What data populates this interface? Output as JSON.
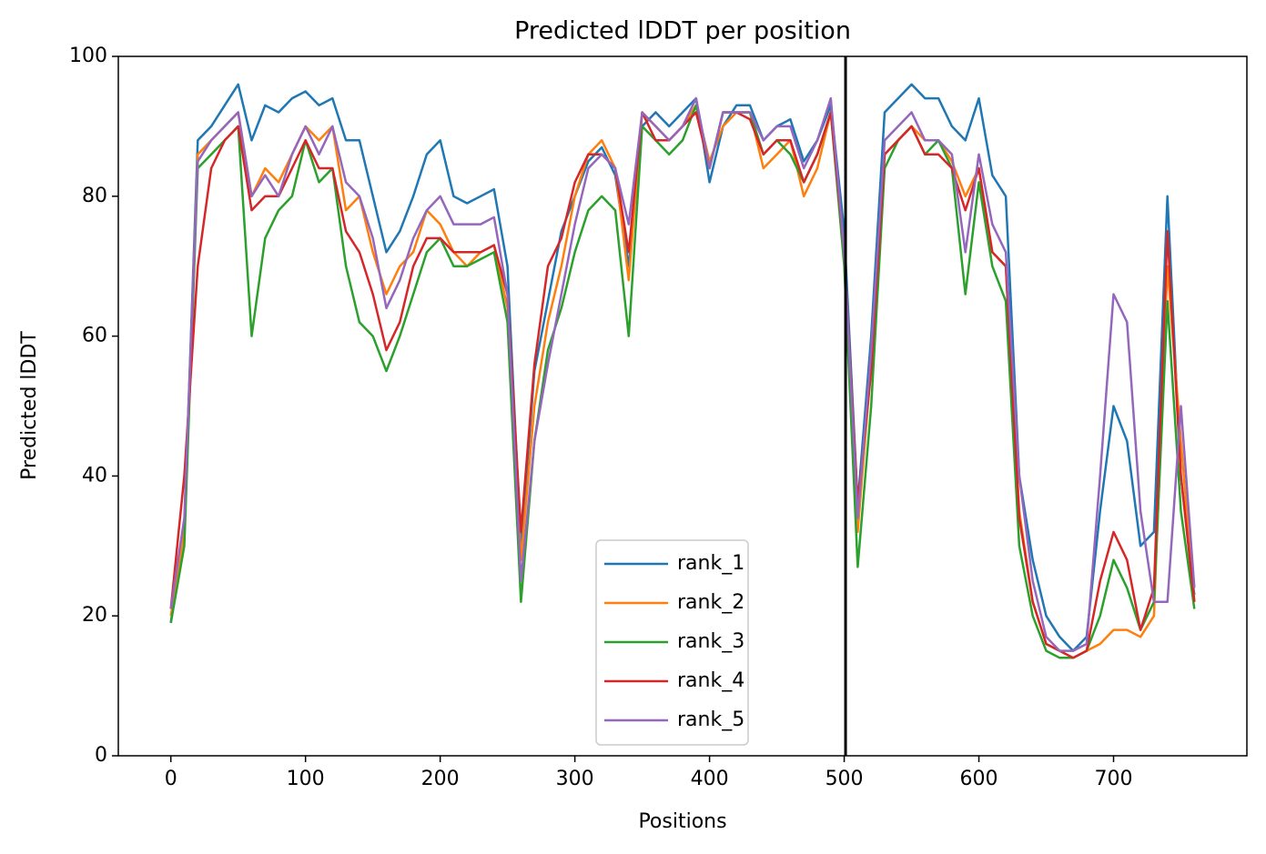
{
  "chart_data": {
    "type": "line",
    "title": "Predicted lDDT per position",
    "xlabel": "Positions",
    "ylabel": "Predicted lDDT",
    "x": [
      0,
      10,
      20,
      30,
      40,
      50,
      60,
      70,
      80,
      90,
      100,
      110,
      120,
      130,
      140,
      150,
      160,
      170,
      180,
      190,
      200,
      210,
      220,
      230,
      240,
      250,
      260,
      270,
      280,
      290,
      300,
      310,
      320,
      330,
      340,
      350,
      360,
      370,
      380,
      390,
      400,
      410,
      420,
      430,
      440,
      450,
      460,
      470,
      480,
      490,
      500,
      510,
      520,
      530,
      540,
      550,
      560,
      570,
      580,
      590,
      600,
      610,
      620,
      630,
      640,
      650,
      660,
      670,
      680,
      690,
      700,
      710,
      720,
      730,
      740,
      750,
      760
    ],
    "series": [
      {
        "name": "rank_1",
        "color": "#1f77b4",
        "values": [
          19,
          33,
          88,
          90,
          93,
          96,
          88,
          93,
          92,
          94,
          95,
          93,
          94,
          88,
          88,
          80,
          72,
          75,
          80,
          86,
          88,
          80,
          79,
          80,
          81,
          70,
          30,
          55,
          65,
          75,
          80,
          85,
          87,
          83,
          70,
          90,
          92,
          90,
          92,
          94,
          82,
          90,
          93,
          93,
          88,
          90,
          91,
          85,
          88,
          93,
          75,
          36,
          60,
          92,
          94,
          96,
          94,
          94,
          90,
          88,
          94,
          83,
          80,
          40,
          28,
          20,
          17,
          15,
          17,
          35,
          50,
          45,
          30,
          32,
          80,
          40,
          23
        ]
      },
      {
        "name": "rank_2",
        "color": "#ff7f0e",
        "values": [
          20,
          32,
          86,
          88,
          90,
          92,
          80,
          84,
          82,
          86,
          90,
          88,
          90,
          78,
          80,
          72,
          66,
          70,
          72,
          78,
          76,
          72,
          70,
          72,
          73,
          64,
          28,
          50,
          62,
          70,
          80,
          86,
          88,
          84,
          68,
          92,
          90,
          88,
          90,
          93,
          85,
          90,
          92,
          92,
          84,
          86,
          88,
          80,
          84,
          92,
          72,
          32,
          56,
          86,
          88,
          90,
          88,
          88,
          85,
          80,
          84,
          72,
          70,
          35,
          22,
          16,
          15,
          14,
          15,
          16,
          18,
          18,
          17,
          20,
          70,
          45,
          22
        ]
      },
      {
        "name": "rank_3",
        "color": "#2ca02c",
        "values": [
          19,
          30,
          84,
          86,
          88,
          90,
          60,
          74,
          78,
          80,
          88,
          82,
          84,
          70,
          62,
          60,
          55,
          60,
          66,
          72,
          74,
          70,
          70,
          71,
          72,
          62,
          22,
          45,
          58,
          64,
          72,
          78,
          80,
          78,
          60,
          90,
          88,
          86,
          88,
          93,
          84,
          92,
          92,
          92,
          86,
          88,
          86,
          82,
          86,
          92,
          70,
          27,
          50,
          84,
          88,
          90,
          86,
          88,
          84,
          66,
          82,
          70,
          65,
          30,
          20,
          15,
          14,
          14,
          15,
          20,
          28,
          24,
          18,
          22,
          65,
          35,
          21
        ]
      },
      {
        "name": "rank_4",
        "color": "#d62728",
        "values": [
          21,
          40,
          70,
          84,
          88,
          90,
          78,
          80,
          80,
          84,
          88,
          84,
          84,
          75,
          72,
          66,
          58,
          62,
          70,
          74,
          74,
          72,
          72,
          72,
          73,
          66,
          32,
          56,
          70,
          74,
          82,
          86,
          86,
          84,
          72,
          92,
          88,
          88,
          90,
          92,
          84,
          92,
          92,
          91,
          86,
          88,
          88,
          82,
          86,
          92,
          72,
          36,
          55,
          86,
          88,
          90,
          86,
          86,
          84,
          78,
          84,
          72,
          70,
          34,
          22,
          16,
          15,
          14,
          15,
          25,
          32,
          28,
          18,
          24,
          75,
          40,
          22
        ]
      },
      {
        "name": "rank_5",
        "color": "#9467bd",
        "values": [
          21,
          34,
          85,
          88,
          90,
          92,
          80,
          83,
          80,
          86,
          90,
          86,
          90,
          82,
          80,
          74,
          64,
          68,
          74,
          78,
          80,
          76,
          76,
          76,
          77,
          66,
          25,
          45,
          56,
          66,
          76,
          84,
          86,
          84,
          76,
          92,
          90,
          88,
          90,
          94,
          84,
          92,
          92,
          92,
          88,
          90,
          90,
          84,
          88,
          94,
          72,
          34,
          58,
          88,
          90,
          92,
          88,
          88,
          86,
          72,
          86,
          76,
          72,
          40,
          25,
          17,
          15,
          15,
          16,
          40,
          66,
          62,
          35,
          22,
          22,
          50,
          24
        ]
      }
    ],
    "vline": 501,
    "xlim": [
      -39,
      799
    ],
    "ylim": [
      0,
      100
    ],
    "xticks": [
      0,
      100,
      200,
      300,
      400,
      500,
      600,
      700
    ],
    "yticks": [
      0,
      20,
      40,
      60,
      80,
      100
    ],
    "legend": "lower center",
    "grid": false
  }
}
